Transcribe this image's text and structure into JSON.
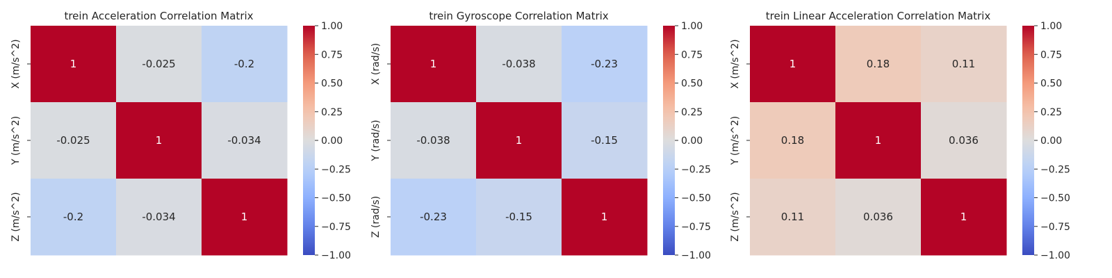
{
  "chart_data": [
    {
      "type": "heatmap",
      "title": "trein Acceleration Correlation Matrix",
      "row_labels": [
        "X (m/s^2)",
        "Y (m/s^2)",
        "Z (m/s^2)"
      ],
      "col_labels": [],
      "values": [
        [
          1,
          -0.025,
          -0.2
        ],
        [
          -0.025,
          1,
          -0.034
        ],
        [
          -0.2,
          -0.034,
          1
        ]
      ],
      "cell_labels": [
        [
          "1",
          "-0.025",
          "-0.2"
        ],
        [
          "-0.025",
          "1",
          "-0.034"
        ],
        [
          "-0.2",
          "-0.034",
          "1"
        ]
      ],
      "colorbar": {
        "range": [
          -1,
          1
        ],
        "ticks": [
          "1.00",
          "0.75",
          "0.50",
          "0.25",
          "0.00",
          "−0.25",
          "−0.50",
          "−0.75",
          "−1.00"
        ],
        "colormap": "coolwarm"
      }
    },
    {
      "type": "heatmap",
      "title": "trein Gyroscope Correlation Matrix",
      "row_labels": [
        "X (rad/s)",
        "Y (rad/s)",
        "Z (rad/s)"
      ],
      "col_labels": [],
      "values": [
        [
          1,
          -0.038,
          -0.23
        ],
        [
          -0.038,
          1,
          -0.15
        ],
        [
          -0.23,
          -0.15,
          1
        ]
      ],
      "cell_labels": [
        [
          "1",
          "-0.038",
          "-0.23"
        ],
        [
          "-0.038",
          "1",
          "-0.15"
        ],
        [
          "-0.23",
          "-0.15",
          "1"
        ]
      ],
      "colorbar": {
        "range": [
          -1,
          1
        ],
        "ticks": [
          "1.00",
          "0.75",
          "0.50",
          "0.25",
          "0.00",
          "−0.25",
          "−0.50",
          "−0.75",
          "−1.00"
        ],
        "colormap": "coolwarm"
      }
    },
    {
      "type": "heatmap",
      "title": "trein Linear Acceleration Correlation Matrix",
      "row_labels": [
        "X (m/s^2)",
        "Y (m/s^2)",
        "Z (m/s^2)"
      ],
      "col_labels": [],
      "values": [
        [
          1,
          0.18,
          0.11
        ],
        [
          0.18,
          1,
          0.036
        ],
        [
          0.11,
          0.036,
          1
        ]
      ],
      "cell_labels": [
        [
          "1",
          "0.18",
          "0.11"
        ],
        [
          "0.18",
          "1",
          "0.036"
        ],
        [
          "0.11",
          "0.036",
          "1"
        ]
      ],
      "colorbar": {
        "range": [
          -1,
          1
        ],
        "ticks": [
          "1.00",
          "0.75",
          "0.50",
          "0.25",
          "0.00",
          "−0.25",
          "−0.50",
          "−0.75",
          "−1.00"
        ],
        "colormap": "coolwarm"
      }
    }
  ]
}
